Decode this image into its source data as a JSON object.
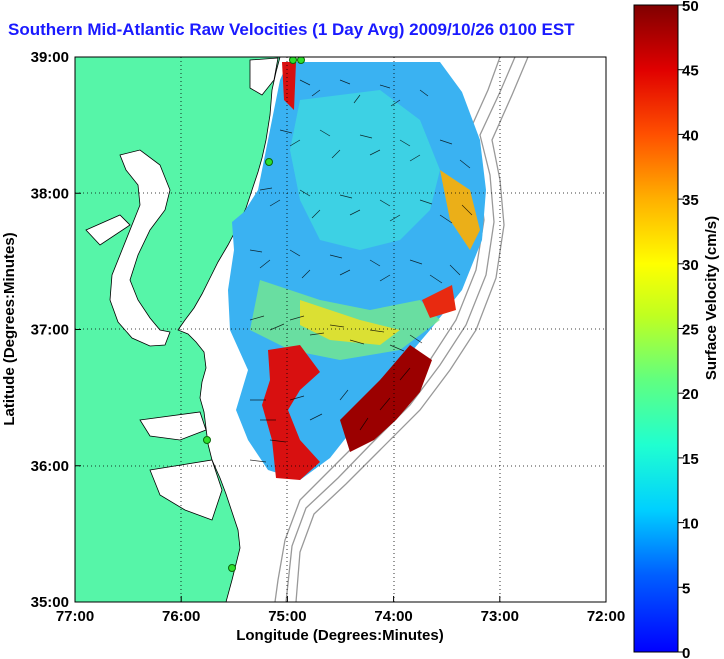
{
  "title": "Southern Mid-Atlantic Raw Velocities (1 Day Avg) 2009/10/26 0100 EST",
  "map": {
    "x_label": "Longitude (Degrees:Minutes)",
    "y_label": "Latitude (Degrees:Minutes)",
    "x_ticks": [
      "77:00",
      "76:00",
      "75:00",
      "74:00",
      "73:00",
      "72:00"
    ],
    "y_ticks": [
      "39:00",
      "38:00",
      "37:00",
      "36:00",
      "35:00"
    ],
    "colors": {
      "land": "#56f5a8",
      "water": "#ffffff",
      "bathymetry": "#999999",
      "coast": "#000000",
      "station": "#2ee02e"
    }
  },
  "colorbar": {
    "label": "Surface Velocity (cm/s)",
    "ticks": [
      "0",
      "5",
      "10",
      "15",
      "20",
      "25",
      "30",
      "35",
      "40",
      "45",
      "50"
    ],
    "min": 0,
    "max": 50
  }
}
